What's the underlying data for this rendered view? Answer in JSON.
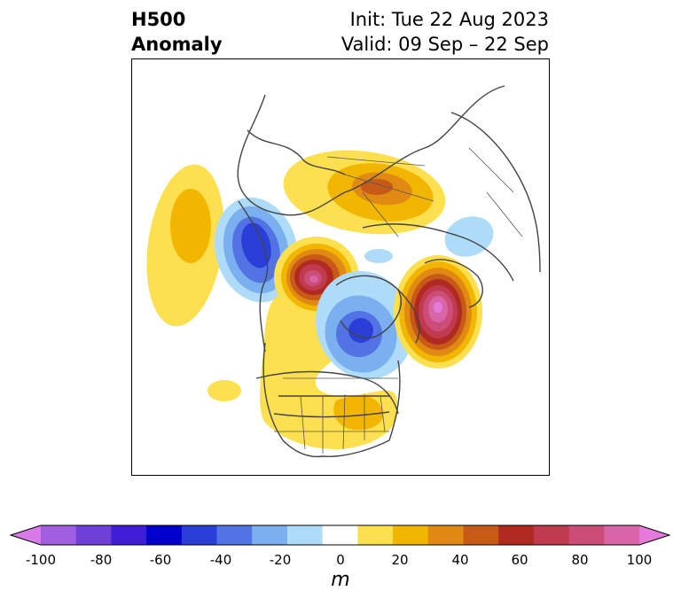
{
  "title": {
    "left_line1": "H500",
    "left_line2": "Anomaly",
    "right_line1": "Init: Tue 22 Aug 2023",
    "right_line2": "Valid: 09 Sep – 22 Sep"
  },
  "colorbar": {
    "unit_label": "m",
    "ticks": [
      "-100",
      "-80",
      "-60",
      "-40",
      "-20",
      "0",
      "20",
      "40",
      "60",
      "80",
      "100"
    ],
    "colors": [
      "#d87be8",
      "#a05ee0",
      "#6e40d8",
      "#3d1ed6",
      "#0000cc",
      "#2a3fd8",
      "#5273e4",
      "#7ab0f0",
      "#aedcf8",
      "#ffffff",
      "#fde04f",
      "#f2b600",
      "#e08a14",
      "#c85a18",
      "#b02a22",
      "#c03a50",
      "#cc4d78",
      "#d865a8",
      "#e67adc"
    ]
  },
  "map": {
    "projection": "polar-stereographic",
    "anomalies": [
      {
        "label": "pacific-positive",
        "sign": "positive",
        "peak_m": 30
      },
      {
        "label": "west-coast-negative",
        "sign": "negative",
        "peak_m": -50
      },
      {
        "label": "alaska-positive",
        "sign": "positive",
        "peak_m": 75
      },
      {
        "label": "hudson-negative",
        "sign": "negative",
        "peak_m": -45
      },
      {
        "label": "north-atlantic-positive",
        "sign": "positive",
        "peak_m": 95
      },
      {
        "label": "siberia-positive",
        "sign": "positive",
        "peak_m": 45
      },
      {
        "label": "scandinavia-negative",
        "sign": "negative",
        "peak_m": -20
      },
      {
        "label": "conus-positive",
        "sign": "positive",
        "peak_m": 25
      }
    ]
  }
}
